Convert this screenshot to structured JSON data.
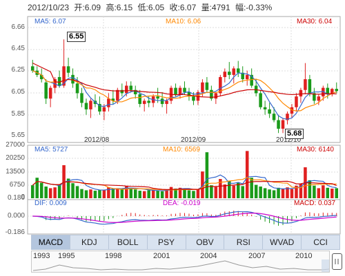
{
  "header": {
    "date": "2012/10/23",
    "open": "开:6.09",
    "high": "高:6.15",
    "low": "低:6.05",
    "close": "收:6.07",
    "volume": "量:4791",
    "change": "幅:-0.33%"
  },
  "price_panel": {
    "ma5": "MA5: 6.07",
    "ma10": "MA10: 6.06",
    "ma30": "MA30: 6.04",
    "y_ticks": [
      "6.66",
      "6.45",
      "6.25",
      "6.05",
      "5.85",
      "5.65"
    ],
    "x_ticks": [
      "2012/08",
      "2012/09",
      "2012/10"
    ],
    "high_callout": "6.55",
    "low_callout": "5.68"
  },
  "volume_panel": {
    "ma5": "MA5: 5727",
    "ma10": "MA10: 6569",
    "ma30": "MA30: 6140",
    "y_ticks": [
      "27000",
      "20250",
      "13500",
      "6750",
      "0"
    ]
  },
  "macd_panel": {
    "dif": "DIF: 0.009",
    "dea": "DEA: -0.019",
    "macd": "MACD: 0.037",
    "y_ticks": [
      "0.186",
      "0.000",
      "-0.186"
    ]
  },
  "tabs": [
    "MACD",
    "KDJ",
    "BOLL",
    "PSY",
    "OBV",
    "RSI",
    "WVAD",
    "CCI"
  ],
  "active_tab": "MACD",
  "timeline_years": [
    "1993",
    "1995",
    "1998",
    "2001",
    "2004",
    "2007",
    "2010"
  ],
  "colors": {
    "up": "#e02020",
    "down": "#1a9a1a",
    "ma5": "#3366cc",
    "ma10": "#ff8800",
    "ma30": "#cc0000",
    "grid": "#dddddd",
    "tabs_bg": "#d9e3f0"
  },
  "chart_data": {
    "type": "candlestick",
    "ylim": [
      5.65,
      6.66
    ],
    "candles": [
      [
        6.3,
        6.36,
        6.24,
        6.26
      ],
      [
        6.26,
        6.3,
        6.2,
        6.22
      ],
      [
        6.22,
        6.28,
        6.15,
        6.18
      ],
      [
        6.15,
        6.18,
        5.95,
        6.0
      ],
      [
        6.0,
        6.12,
        5.92,
        6.1
      ],
      [
        6.1,
        6.2,
        6.05,
        6.18
      ],
      [
        6.2,
        6.26,
        6.1,
        6.12
      ],
      [
        6.12,
        6.55,
        6.1,
        6.3
      ],
      [
        6.3,
        6.38,
        6.2,
        6.24
      ],
      [
        6.22,
        6.28,
        6.1,
        6.14
      ],
      [
        6.14,
        6.2,
        6.0,
        6.05
      ],
      [
        6.05,
        6.1,
        5.92,
        5.96
      ],
      [
        5.96,
        6.0,
        5.85,
        5.9
      ],
      [
        5.9,
        6.0,
        5.82,
        5.98
      ],
      [
        5.98,
        6.04,
        5.92,
        5.95
      ],
      [
        5.95,
        6.02,
        5.85,
        5.88
      ],
      [
        5.88,
        5.95,
        5.8,
        5.92
      ],
      [
        5.92,
        6.05,
        5.88,
        6.0
      ],
      [
        6.0,
        6.08,
        5.95,
        5.98
      ],
      [
        5.98,
        6.1,
        5.95,
        6.08
      ],
      [
        6.08,
        6.14,
        6.02,
        6.05
      ],
      [
        6.05,
        6.16,
        6.02,
        6.12
      ],
      [
        6.12,
        6.16,
        6.06,
        6.08
      ],
      [
        6.08,
        6.12,
        6.0,
        6.04
      ],
      [
        6.04,
        6.08,
        5.92,
        5.95
      ],
      [
        5.95,
        6.0,
        5.88,
        5.98
      ],
      [
        5.98,
        6.02,
        5.92,
        5.96
      ],
      [
        5.96,
        6.04,
        5.92,
        6.02
      ],
      [
        6.02,
        6.1,
        5.96,
        6.0
      ],
      [
        6.0,
        6.06,
        5.92,
        5.95
      ],
      [
        5.95,
        6.0,
        5.86,
        5.98
      ],
      [
        5.98,
        6.12,
        5.95,
        6.1
      ],
      [
        6.1,
        6.14,
        6.02,
        6.04
      ],
      [
        6.04,
        6.12,
        6.0,
        6.1
      ],
      [
        6.1,
        6.16,
        6.04,
        6.06
      ],
      [
        6.06,
        6.1,
        5.98,
        6.02
      ],
      [
        6.02,
        6.06,
        5.94,
        5.98
      ],
      [
        5.98,
        6.08,
        5.94,
        6.06
      ],
      [
        6.06,
        6.18,
        6.02,
        6.15
      ],
      [
        6.15,
        6.2,
        6.06,
        6.08
      ],
      [
        6.08,
        6.12,
        5.98,
        6.0
      ],
      [
        6.0,
        6.06,
        5.95,
        6.05
      ],
      [
        6.05,
        6.22,
        6.02,
        6.2
      ],
      [
        6.2,
        6.28,
        6.15,
        6.25
      ],
      [
        6.25,
        6.34,
        6.18,
        6.22
      ],
      [
        6.22,
        6.3,
        6.14,
        6.28
      ],
      [
        6.28,
        6.35,
        6.2,
        6.24
      ],
      [
        6.24,
        6.3,
        6.15,
        6.18
      ],
      [
        6.18,
        6.26,
        6.12,
        6.22
      ],
      [
        6.22,
        6.28,
        6.1,
        6.12
      ],
      [
        6.12,
        6.18,
        6.02,
        6.05
      ],
      [
        6.05,
        6.08,
        5.9,
        5.92
      ],
      [
        5.92,
        5.98,
        5.85,
        5.9
      ],
      [
        5.9,
        5.96,
        5.82,
        5.86
      ],
      [
        5.86,
        5.92,
        5.78,
        5.8
      ],
      [
        5.8,
        5.85,
        5.68,
        5.72
      ],
      [
        5.72,
        5.82,
        5.68,
        5.8
      ],
      [
        5.8,
        5.88,
        5.76,
        5.86
      ],
      [
        5.86,
        5.95,
        5.82,
        5.92
      ],
      [
        5.92,
        6.05,
        5.88,
        6.02
      ],
      [
        6.02,
        6.1,
        5.96,
        6.08
      ],
      [
        6.08,
        6.33,
        6.04,
        6.18
      ],
      [
        6.18,
        6.22,
        6.02,
        6.05
      ],
      [
        6.05,
        6.1,
        5.95,
        5.98
      ],
      [
        5.98,
        6.04,
        5.94,
        6.02
      ],
      [
        6.02,
        6.12,
        5.98,
        6.1
      ],
      [
        6.1,
        6.14,
        6.0,
        6.04
      ],
      [
        6.04,
        6.1,
        6.02,
        6.09
      ],
      [
        6.09,
        6.15,
        6.05,
        6.07
      ]
    ],
    "volumes": [
      6200,
      9800,
      7400,
      5600,
      4800,
      5200,
      6600,
      15800,
      9400,
      7200,
      5800,
      4400,
      3800,
      4200,
      3600,
      3900,
      4100,
      5200,
      4600,
      4800,
      4300,
      5600,
      5000,
      4200,
      3600,
      3400,
      3800,
      4000,
      3600,
      3300,
      3900,
      5400,
      4600,
      5000,
      4200,
      3800,
      3500,
      4400,
      12800,
      22000,
      6200,
      5400,
      9200,
      6600,
      8400,
      6000,
      7600,
      5800,
      22600,
      9800,
      6400,
      5600,
      4800,
      4200,
      3800,
      5000,
      4600,
      5200,
      4400,
      6000,
      7000,
      14800,
      8600,
      6000,
      4800,
      6200,
      5000,
      4600,
      4800
    ],
    "ma5_volume": 5727,
    "ma10_volume": 6569,
    "ma30_volume": 6140,
    "macd": {
      "dif": 0.009,
      "dea": -0.019,
      "macd": 0.037
    }
  }
}
